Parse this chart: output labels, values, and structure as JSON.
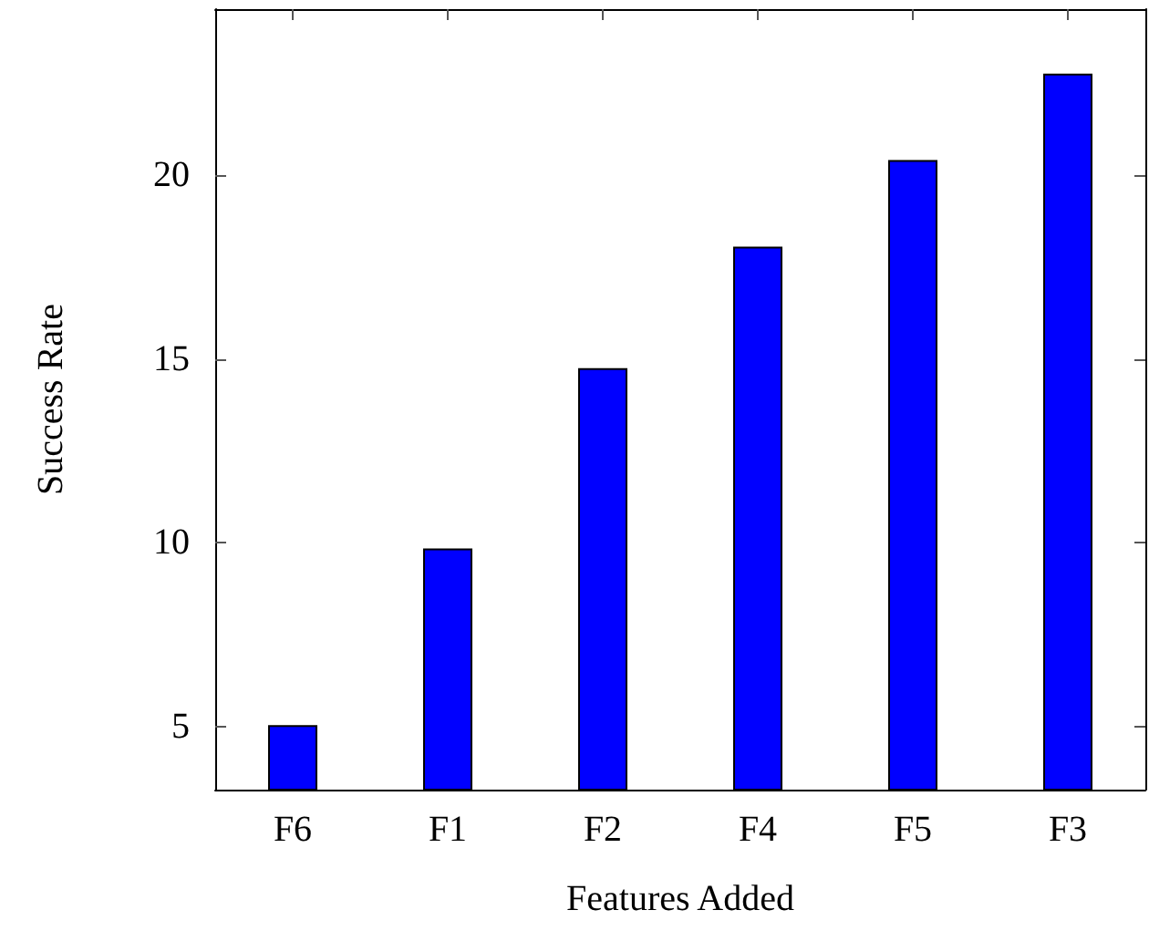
{
  "chart_data": {
    "type": "bar",
    "xlabel": "Features Added",
    "ylabel": "Success Rate",
    "categories": [
      "F6",
      "F1",
      "F2",
      "F4",
      "F5",
      "F3"
    ],
    "values": [
      5.05,
      9.85,
      14.75,
      18.05,
      20.4,
      22.75
    ],
    "color": "#0000ff",
    "ylim": [
      3.3,
      24.5
    ],
    "yticks": [
      5,
      10,
      15,
      20
    ],
    "grid": false
  }
}
